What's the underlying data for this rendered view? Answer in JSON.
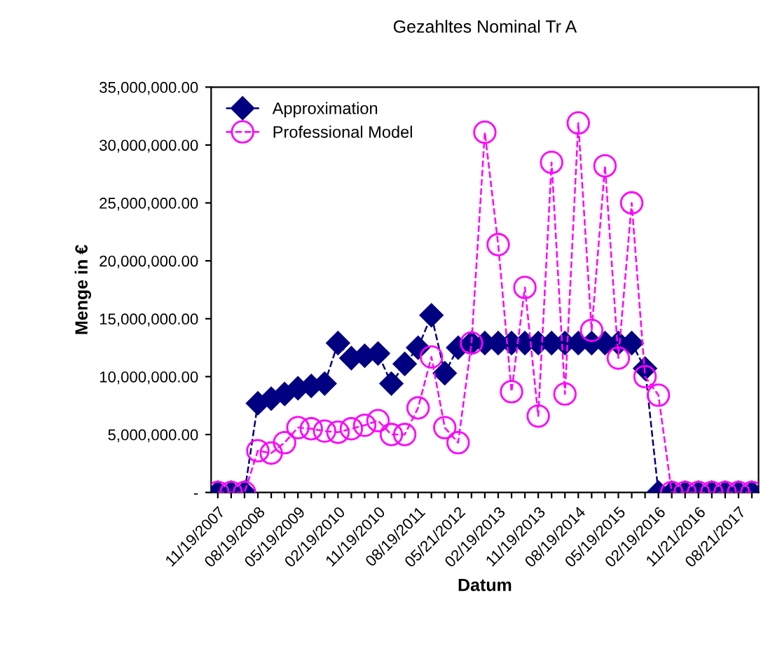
{
  "chart_data": {
    "type": "line",
    "title": "Gezahltes Nominal Tr A",
    "xlabel": "Datum",
    "ylabel": "Menge in €",
    "categories": [
      "11/19/2007",
      null,
      null,
      "08/19/2008",
      null,
      null,
      "05/19/2009",
      null,
      null,
      "02/19/2010",
      null,
      null,
      "11/19/2010",
      null,
      null,
      "08/19/2011",
      null,
      null,
      "05/21/2012",
      null,
      null,
      "02/19/2013",
      null,
      null,
      "11/19/2013",
      null,
      null,
      "08/19/2014",
      null,
      null,
      "05/19/2015",
      null,
      null,
      "02/19/2016",
      null,
      null,
      "11/21/2016",
      null,
      null,
      "08/21/2017",
      null
    ],
    "series": [
      {
        "name": "Approximation",
        "color": "#000080",
        "marker": "diamond",
        "values": [
          0,
          0,
          0,
          7700000,
          8100000,
          8500000,
          9000000,
          9200000,
          9400000,
          12900000,
          11600000,
          11800000,
          12000000,
          9400000,
          11100000,
          12500000,
          15300000,
          10300000,
          12500000,
          12900000,
          12900000,
          12900000,
          12900000,
          12900000,
          12900000,
          12900000,
          12900000,
          12900000,
          12900000,
          12900000,
          12900000,
          12900000,
          10700000,
          0,
          0,
          0,
          0,
          0,
          0,
          0,
          0
        ]
      },
      {
        "name": "Professional Model",
        "color": "#ff00ff",
        "marker": "circle",
        "values": [
          0,
          0,
          0,
          3600000,
          3400000,
          4300000,
          5600000,
          5500000,
          5300000,
          5200000,
          5500000,
          5800000,
          6200000,
          5000000,
          5000000,
          7300000,
          11700000,
          5600000,
          4300000,
          12900000,
          31100000,
          21400000,
          8700000,
          17700000,
          6600000,
          28500000,
          8500000,
          31900000,
          14000000,
          28200000,
          11600000,
          25000000,
          10000000,
          8400000,
          0,
          0,
          0,
          0,
          0,
          0,
          0
        ]
      }
    ],
    "ylim": [
      0,
      35000000
    ],
    "yticks": [
      {
        "value": 0,
        "label": "-"
      },
      {
        "value": 5000000,
        "label": "5,000,000.00"
      },
      {
        "value": 10000000,
        "label": "10,000,000.00"
      },
      {
        "value": 15000000,
        "label": "15,000,000.00"
      },
      {
        "value": 20000000,
        "label": "20,000,000.00"
      },
      {
        "value": 25000000,
        "label": "25,000,000.00"
      },
      {
        "value": 30000000,
        "label": "30,000,000.00"
      },
      {
        "value": 35000000,
        "label": "35,000,000.00"
      }
    ],
    "line_style": "dashed",
    "legend": "top left",
    "grid": false
  }
}
